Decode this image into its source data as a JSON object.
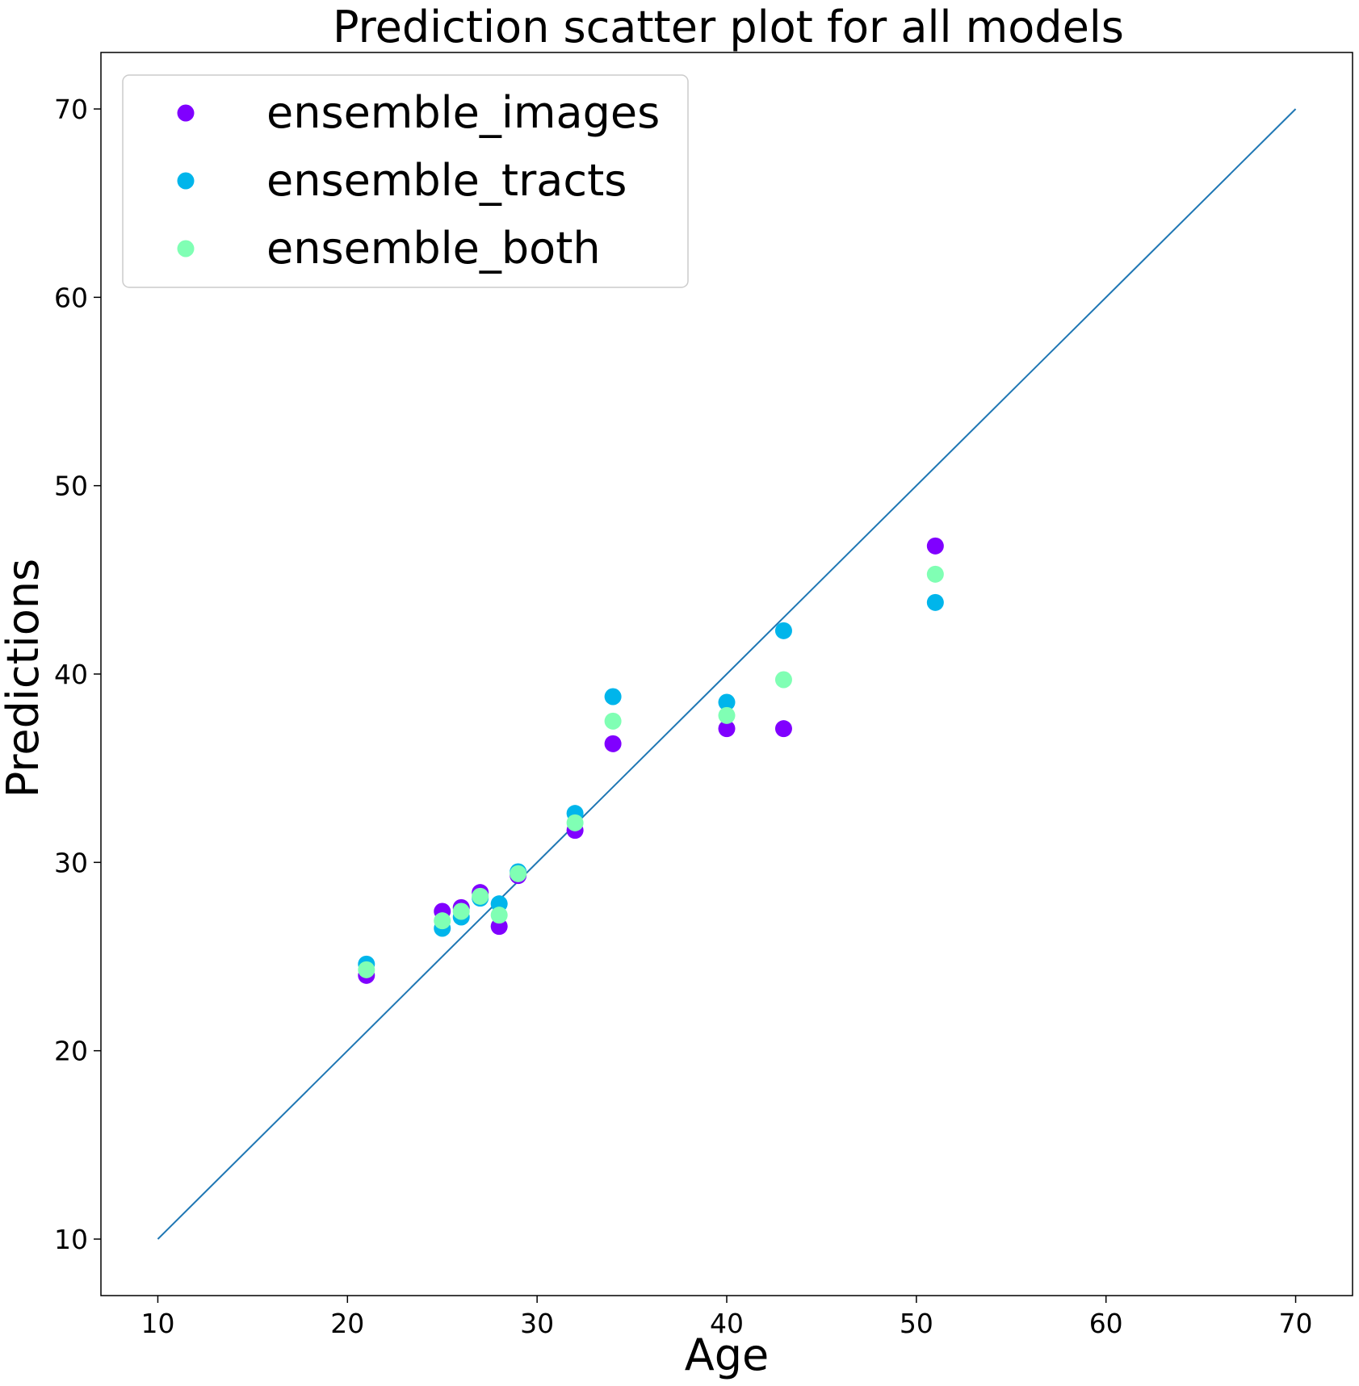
{
  "chart_data": {
    "type": "scatter",
    "title": "Prediction scatter plot for all models",
    "xlabel": "Age",
    "ylabel": "Predictions",
    "xlim": [
      7,
      73
    ],
    "ylim": [
      7,
      73
    ],
    "xticks": [
      10,
      20,
      30,
      40,
      50,
      60,
      70
    ],
    "yticks": [
      10,
      20,
      30,
      40,
      50,
      60,
      70
    ],
    "grid": false,
    "legend_position": "top-left",
    "reference_line": {
      "x": [
        10,
        70
      ],
      "y": [
        10,
        70
      ],
      "color": "#1f77b4"
    },
    "series": [
      {
        "name": "ensemble_images",
        "color": "#8000ff",
        "points": [
          [
            21,
            24.0
          ],
          [
            25,
            27.4
          ],
          [
            26,
            27.6
          ],
          [
            27,
            28.4
          ],
          [
            28,
            26.6
          ],
          [
            29,
            29.3
          ],
          [
            32,
            31.7
          ],
          [
            34,
            36.3
          ],
          [
            40,
            37.1
          ],
          [
            43,
            37.1
          ],
          [
            51,
            46.8
          ]
        ]
      },
      {
        "name": "ensemble_tracts",
        "color": "#00b5eb",
        "points": [
          [
            21,
            24.6
          ],
          [
            25,
            26.5
          ],
          [
            26,
            27.1
          ],
          [
            27,
            28.1
          ],
          [
            28,
            27.8
          ],
          [
            29,
            29.5
          ],
          [
            32,
            32.6
          ],
          [
            34,
            38.8
          ],
          [
            40,
            38.5
          ],
          [
            43,
            42.3
          ],
          [
            51,
            43.8
          ]
        ]
      },
      {
        "name": "ensemble_both",
        "color": "#80ffb4",
        "points": [
          [
            21,
            24.3
          ],
          [
            25,
            26.9
          ],
          [
            26,
            27.4
          ],
          [
            27,
            28.2
          ],
          [
            28,
            27.2
          ],
          [
            29,
            29.4
          ],
          [
            32,
            32.1
          ],
          [
            34,
            37.5
          ],
          [
            40,
            37.8
          ],
          [
            43,
            39.7
          ],
          [
            51,
            45.3
          ]
        ]
      }
    ]
  }
}
